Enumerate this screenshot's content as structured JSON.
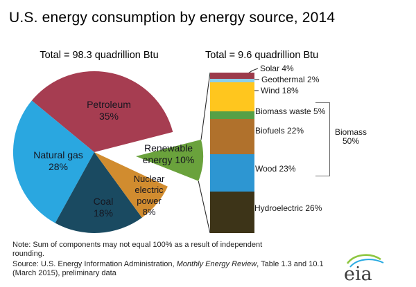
{
  "title": "U.S. energy consumption by energy source, 2014",
  "note": {
    "line1": "Note: Sum of components may not equal 100% as a result  of independent",
    "line2": "rounding."
  },
  "source": {
    "prefix": "Source: U.S. Energy Information Administration, ",
    "italic": "Monthly Energy Review",
    "suffix": ", Table 1.3 and 10.1 (March 2015), preliminary data"
  },
  "logo": {
    "text": "eia"
  },
  "chart_data": [
    {
      "type": "pie",
      "title": "Total = 98.3 quadrillion Btu",
      "total": 98.3,
      "unit": "quadrillion Btu",
      "slices": [
        {
          "id": "petroleum",
          "label": "Petroleum",
          "pct": 35,
          "color": "#A63D51"
        },
        {
          "id": "natural_gas",
          "label": "Natural gas",
          "pct": 28,
          "color": "#2AA7E0"
        },
        {
          "id": "coal",
          "label": "Coal",
          "pct": 18,
          "color": "#1A4A61"
        },
        {
          "id": "nuclear",
          "label": "Nuclear electric power",
          "pct": 8,
          "color": "#D18C2F"
        },
        {
          "id": "renewable",
          "label": "Renewable energy",
          "pct": 10,
          "color": "#6AA23C",
          "exploded": true
        }
      ]
    },
    {
      "type": "bar",
      "subtype": "stacked",
      "title": "Total = 9.6 quadrillion Btu",
      "total": 9.6,
      "unit": "quadrillion Btu",
      "segments": [
        {
          "id": "solar",
          "label": "Solar",
          "pct": 4,
          "color": "#9C3A4A"
        },
        {
          "id": "geothermal",
          "label": "Geothermal",
          "pct": 2,
          "color": "#8BCFEA"
        },
        {
          "id": "wind",
          "label": "Wind",
          "pct": 18,
          "color": "#FFC61E"
        },
        {
          "id": "biomass_waste",
          "label": "Biomass waste",
          "pct": 5,
          "color": "#56A046"
        },
        {
          "id": "biofuels",
          "label": "Biofuels",
          "pct": 22,
          "color": "#B0712C"
        },
        {
          "id": "wood",
          "label": "Wood",
          "pct": 23,
          "color": "#2D96D2"
        },
        {
          "id": "hydroelectric",
          "label": "Hydroelectric",
          "pct": 26,
          "color": "#3D3418"
        }
      ],
      "bracket": {
        "label": "Biomass",
        "pct": 50,
        "covers": [
          "biomass_waste",
          "biofuels",
          "wood"
        ]
      }
    }
  ]
}
